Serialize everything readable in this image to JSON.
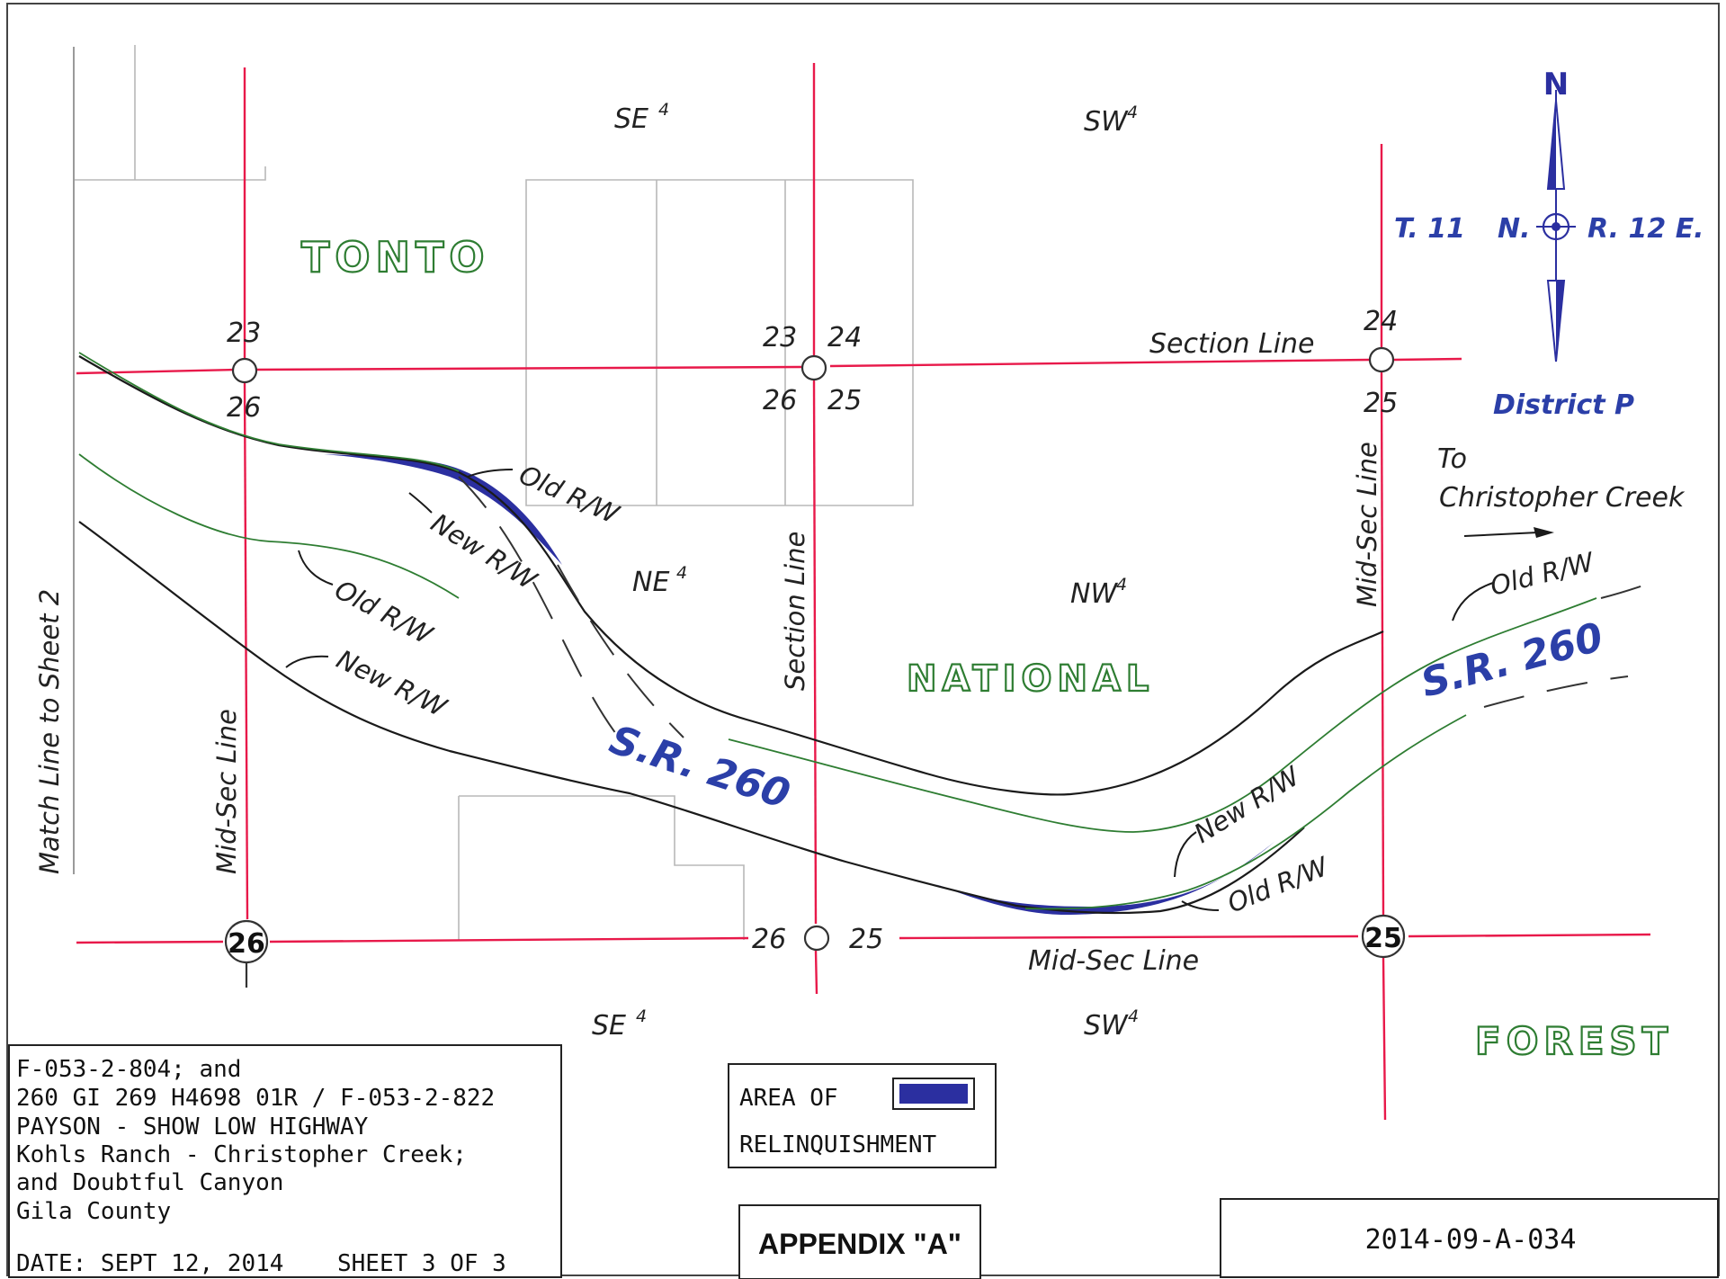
{
  "compass": {
    "north_letter": "N",
    "township": "T. 11",
    "north_abbrev": "N.",
    "range": "R. 12 E.",
    "district": "District P"
  },
  "forest_name": [
    "TONTO",
    "NATIONAL",
    "FOREST"
  ],
  "quarter_labels": {
    "se_top": "SE",
    "sw_top": "SW",
    "ne_mid": "NE",
    "nw_mid": "NW",
    "se_bottom": "SE",
    "sw_bottom": "SW",
    "superscript": "4"
  },
  "section_numbers": {
    "nw_corner_top": "23",
    "nw_corner_bottom": "26",
    "mid_corner_tl": "23",
    "mid_corner_tr": "24",
    "mid_corner_bl": "26",
    "mid_corner_br": "25",
    "ne_corner_top": "24",
    "ne_corner_bottom": "25",
    "bottom_left_circled": "26",
    "bottom_mid_left": "26",
    "bottom_mid_right": "25",
    "bottom_right_circled": "25"
  },
  "line_labels": {
    "section_line_top": "Section Line",
    "section_line_vertical": "Section Line",
    "mid_sec_line_left": "Mid-Sec Line",
    "mid_sec_line_right": "Mid-Sec Line",
    "mid_sec_line_bottom": "Mid-Sec Line",
    "match_line": "Match Line to Sheet 2"
  },
  "rw_labels": {
    "old_rw_1": "Old R/W",
    "new_rw_1": "New R/W",
    "old_rw_2": "Old R/W",
    "new_rw_2": "New R/W",
    "old_rw_3": "Old R/W",
    "new_rw_3": "New R/W",
    "old_rw_4": "Old R/W"
  },
  "route": {
    "label_left": "S.R. 260",
    "label_right": "S.R. 260"
  },
  "direction": {
    "to": "To",
    "destination": "Christopher Creek"
  },
  "title_block": {
    "lines": [
      "F-053-2-804; and",
      "260 GI 269 H4698 01R / F-053-2-822",
      "PAYSON - SHOW LOW HIGHWAY",
      "Kohls Ranch - Christopher Creek;",
      "and Doubtful Canyon",
      "Gila County"
    ],
    "date": "DATE: SEPT 12, 2014",
    "sheet": "SHEET 3 OF 3"
  },
  "legend": {
    "line1": "AREA OF",
    "line2": "RELINQUISHMENT",
    "swatch_color": "#2b2fa0"
  },
  "appendix": "APPENDIX \"A\"",
  "document_number": "2014-09-A-034",
  "colors": {
    "section_line": "#e8194a",
    "green_line": "#2e7d32",
    "relinquishment": "#2b2fa0",
    "north_arrow": "#2b2fa0"
  }
}
